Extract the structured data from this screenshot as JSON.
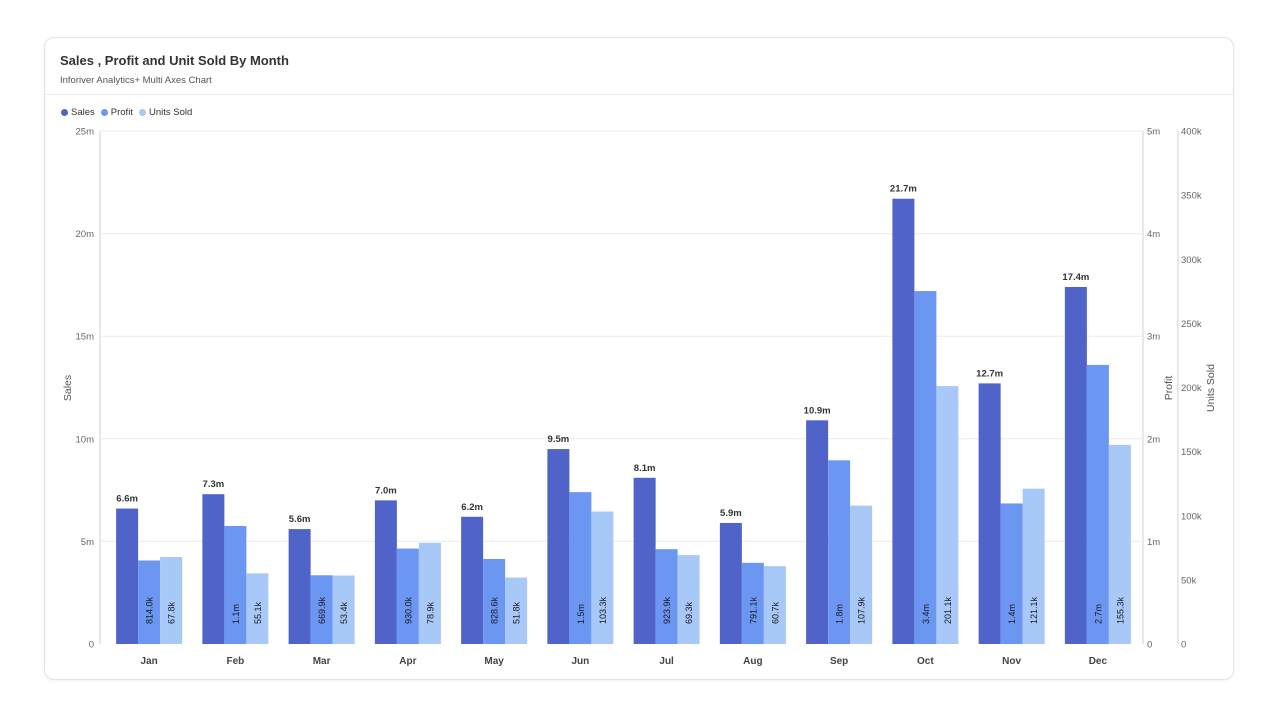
{
  "header": {
    "title": "Sales , Profit and Unit Sold By Month",
    "subtitle": "Inforiver Analytics+ Multi Axes Chart"
  },
  "legend": {
    "items": [
      {
        "label": "Sales",
        "color": "#4F63C9"
      },
      {
        "label": "Profit",
        "color": "#6B96F2"
      },
      {
        "label": "Units Sold",
        "color": "#A8C8F8"
      }
    ]
  },
  "chart_data": {
    "type": "bar",
    "title": "Sales , Profit and Unit Sold By Month",
    "subtitle": "Inforiver Analytics+ Multi Axes Chart",
    "categories": [
      "Jan",
      "Feb",
      "Mar",
      "Apr",
      "May",
      "Jun",
      "Jul",
      "Aug",
      "Sep",
      "Oct",
      "Nov",
      "Dec"
    ],
    "series": [
      {
        "name": "Sales",
        "axis": "left",
        "color": "#4F63C9",
        "values": [
          6.6,
          7.3,
          5.6,
          7.0,
          6.2,
          9.5,
          8.1,
          5.9,
          10.9,
          21.7,
          12.7,
          17.4
        ],
        "labels": [
          "6.6m",
          "7.3m",
          "5.6m",
          "7.0m",
          "6.2m",
          "9.5m",
          "8.1m",
          "5.9m",
          "10.9m",
          "21.7m",
          "12.7m",
          "17.4m"
        ]
      },
      {
        "name": "Profit",
        "axis": "right1",
        "color": "#6B96F2",
        "values": [
          0.814,
          1.15,
          0.6699,
          0.93,
          0.8286,
          1.48,
          0.9239,
          0.7911,
          1.79,
          3.44,
          1.37,
          2.72
        ],
        "labels": [
          "814.0k",
          "1.1m",
          "669.9k",
          "930.0k",
          "828.6k",
          "1.5m",
          "923.9k",
          "791.1k",
          "1.8m",
          "3.4m",
          "1.4m",
          "2.7m"
        ]
      },
      {
        "name": "Units Sold",
        "axis": "right2",
        "color": "#A8C8F8",
        "values": [
          67.8,
          55.1,
          53.4,
          78.9,
          51.8,
          103.3,
          69.3,
          60.7,
          107.9,
          201.1,
          121.1,
          155.3
        ],
        "labels": [
          "67.8k",
          "55.1k",
          "53.4k",
          "78.9k",
          "51.8k",
          "103.3k",
          "69.3k",
          "60.7k",
          "107.9k",
          "201.1k",
          "121.1k",
          "155.3k"
        ]
      }
    ],
    "axes": {
      "left": {
        "label": "Sales",
        "ylim": [
          0,
          25
        ],
        "ticks": [
          "0",
          "5m",
          "10m",
          "15m",
          "20m",
          "25m"
        ]
      },
      "right1": {
        "label": "Profit",
        "ylim": [
          0,
          5
        ],
        "ticks": [
          "0",
          "1m",
          "2m",
          "3m",
          "4m",
          "5m"
        ]
      },
      "right2": {
        "label": "Units Sold",
        "ylim": [
          0,
          400
        ],
        "ticks": [
          "0",
          "50k",
          "100k",
          "150k",
          "200k",
          "250k",
          "300k",
          "350k",
          "400k"
        ]
      }
    },
    "grid": true,
    "legend_position": "top-left"
  }
}
